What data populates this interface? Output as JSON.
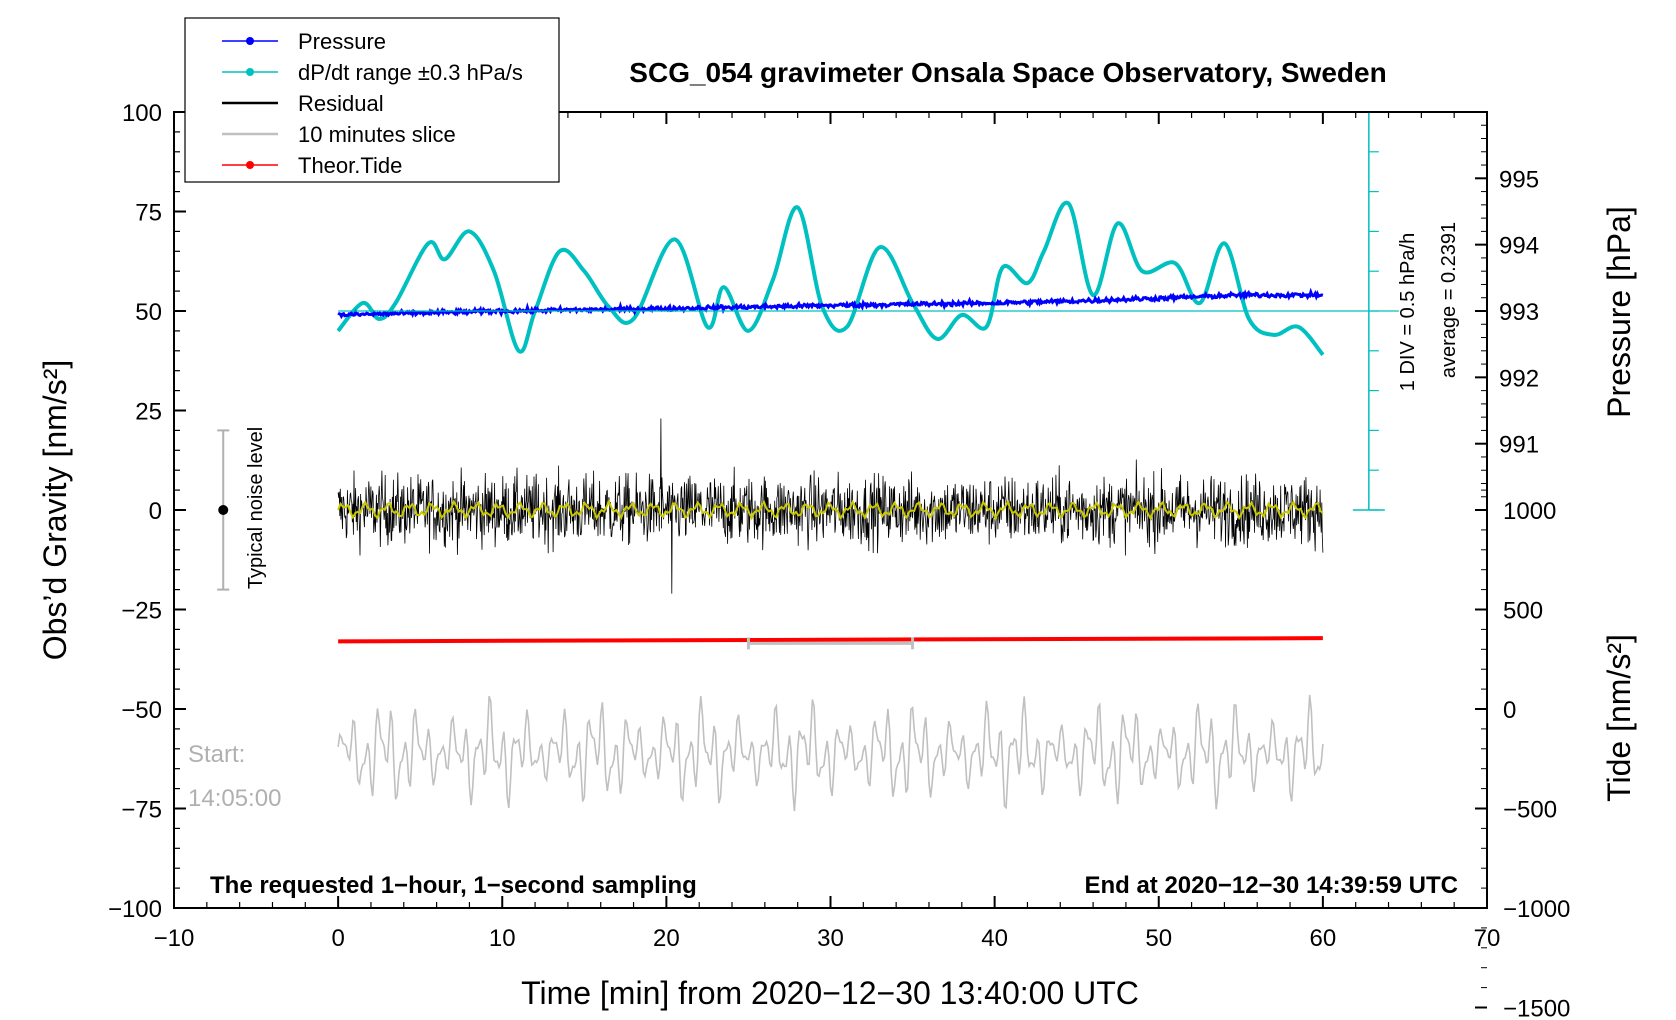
{
  "chart_data": {
    "type": "line",
    "title": "SCG_054 gravimeter Onsala Space Observatory, Sweden",
    "xlabel": "Time [min] from 2020−12−30 13:40:00 UTC",
    "ylabel_left": "Obs’d Gravity [nm/s²]",
    "ylabel_right_pressure": "Pressure [hPa]",
    "ylabel_right_tide": "Tide [nm/s²]",
    "xlim": [
      -10,
      70
    ],
    "ylim": [
      -100,
      100
    ],
    "x_ticks": [
      -10,
      0,
      10,
      20,
      30,
      40,
      50,
      60,
      70
    ],
    "x_tick_labels": [
      "−10",
      "0",
      "10",
      "20",
      "30",
      "40",
      "50",
      "60",
      "70"
    ],
    "y_ticks": [
      -100,
      -75,
      -50,
      -25,
      0,
      25,
      50,
      75,
      100
    ],
    "y_tick_labels": [
      "−100",
      "−75",
      "−50",
      "−25",
      "0",
      "25",
      "50",
      "75",
      "100"
    ],
    "pressure_axis": {
      "ticks": [
        991,
        992,
        993,
        994,
        995
      ],
      "tick_labels": [
        "991",
        "992",
        "993",
        "994",
        "995"
      ],
      "g_at_993": 50,
      "g_per_hpa": 16.67
    },
    "tide_axis": {
      "ticks": [
        -1500,
        -1000,
        -500,
        0,
        500,
        1000
      ],
      "tick_labels": [
        "−1500",
        "−1000",
        "−500",
        "0",
        "500",
        "1000"
      ],
      "g_per_unit": 0.05,
      "g_offset": -50
    },
    "dpdt_scale": {
      "label_div": "1 DIV = 0.5 hPa/h",
      "label_avg": "average = 0.2391",
      "x": 62.8,
      "y_range": [
        0,
        100
      ],
      "ref_y": 50
    },
    "legend": [
      {
        "name": "Pressure",
        "color": "#0000ff",
        "marker": true
      },
      {
        "name": "dP/dt range ±0.3 hPa/s",
        "color": "#00c0c0",
        "marker": true
      },
      {
        "name": "Residual",
        "color": "#000000",
        "marker": false
      },
      {
        "name": "10 minutes slice",
        "color": "#c0c0c0",
        "marker": false
      },
      {
        "name": "Theor.Tide",
        "color": "#ff0000",
        "marker": true
      }
    ],
    "series": [
      {
        "name": "Pressure",
        "color": "#0000ff",
        "x": [
          0,
          5,
          10,
          15,
          20,
          25,
          30,
          35,
          40,
          45,
          50,
          55,
          60
        ],
        "values": [
          49.0,
          49.5,
          50.0,
          50.3,
          50.6,
          51.0,
          51.4,
          51.7,
          52.0,
          52.5,
          53.2,
          54.0,
          54.0
        ]
      },
      {
        "name": "dP/dt range ±0.3 hPa/s",
        "color": "#00c0c0",
        "x": [
          0,
          1.5,
          2.5,
          3.5,
          5.5,
          6.5,
          8,
          9.5,
          11,
          12,
          13.5,
          15,
          16.5,
          18,
          20.5,
          22.5,
          23.5,
          25,
          26.5,
          28,
          29.5,
          31,
          33,
          35,
          36.5,
          38,
          39.5,
          40.5,
          42,
          43,
          44.5,
          46,
          47.5,
          49,
          51,
          52.5,
          54,
          55.5,
          57,
          58.5,
          60
        ],
        "values": [
          45,
          52,
          48,
          52,
          67,
          63,
          70,
          60,
          40,
          50,
          65,
          60,
          51,
          48,
          68,
          46,
          56,
          45,
          58,
          76,
          51,
          46,
          66,
          52,
          43,
          49,
          46,
          61,
          57,
          65,
          77,
          54,
          72,
          60,
          62,
          52,
          67,
          48,
          44,
          46,
          39
        ]
      },
      {
        "name": "Residual",
        "color": "#000000",
        "x_range": [
          0,
          60
        ],
        "center": 0,
        "typical_amplitude": 8,
        "extremes": [
          23,
          -21
        ]
      },
      {
        "name": "Residual running mean",
        "color": "#c8c800",
        "x_range": [
          0,
          60
        ],
        "center": 0
      },
      {
        "name": "10 minutes slice",
        "color": "#c0c0c0",
        "x_range": [
          0,
          60
        ],
        "center": -61,
        "typical_amplitude": 6
      },
      {
        "name": "Theor.Tide",
        "color": "#ff0000",
        "x": [
          0,
          60
        ],
        "values": [
          -33,
          -32.2
        ]
      }
    ],
    "slice_marker": {
      "x": [
        25,
        35
      ],
      "y": -33.5,
      "color": "#c0c0c0"
    },
    "noise_level": {
      "label": "Typical noise level",
      "x": -7,
      "center": 0,
      "half_range": 20
    },
    "annotations": {
      "start_label": "Start:",
      "start_time": "14:05:00",
      "bottom_left": "The requested 1−hour, 1−second sampling",
      "bottom_right": "End at 2020−12−30 14:39:59 UTC"
    },
    "grid": false,
    "legend_position": "top-left"
  }
}
